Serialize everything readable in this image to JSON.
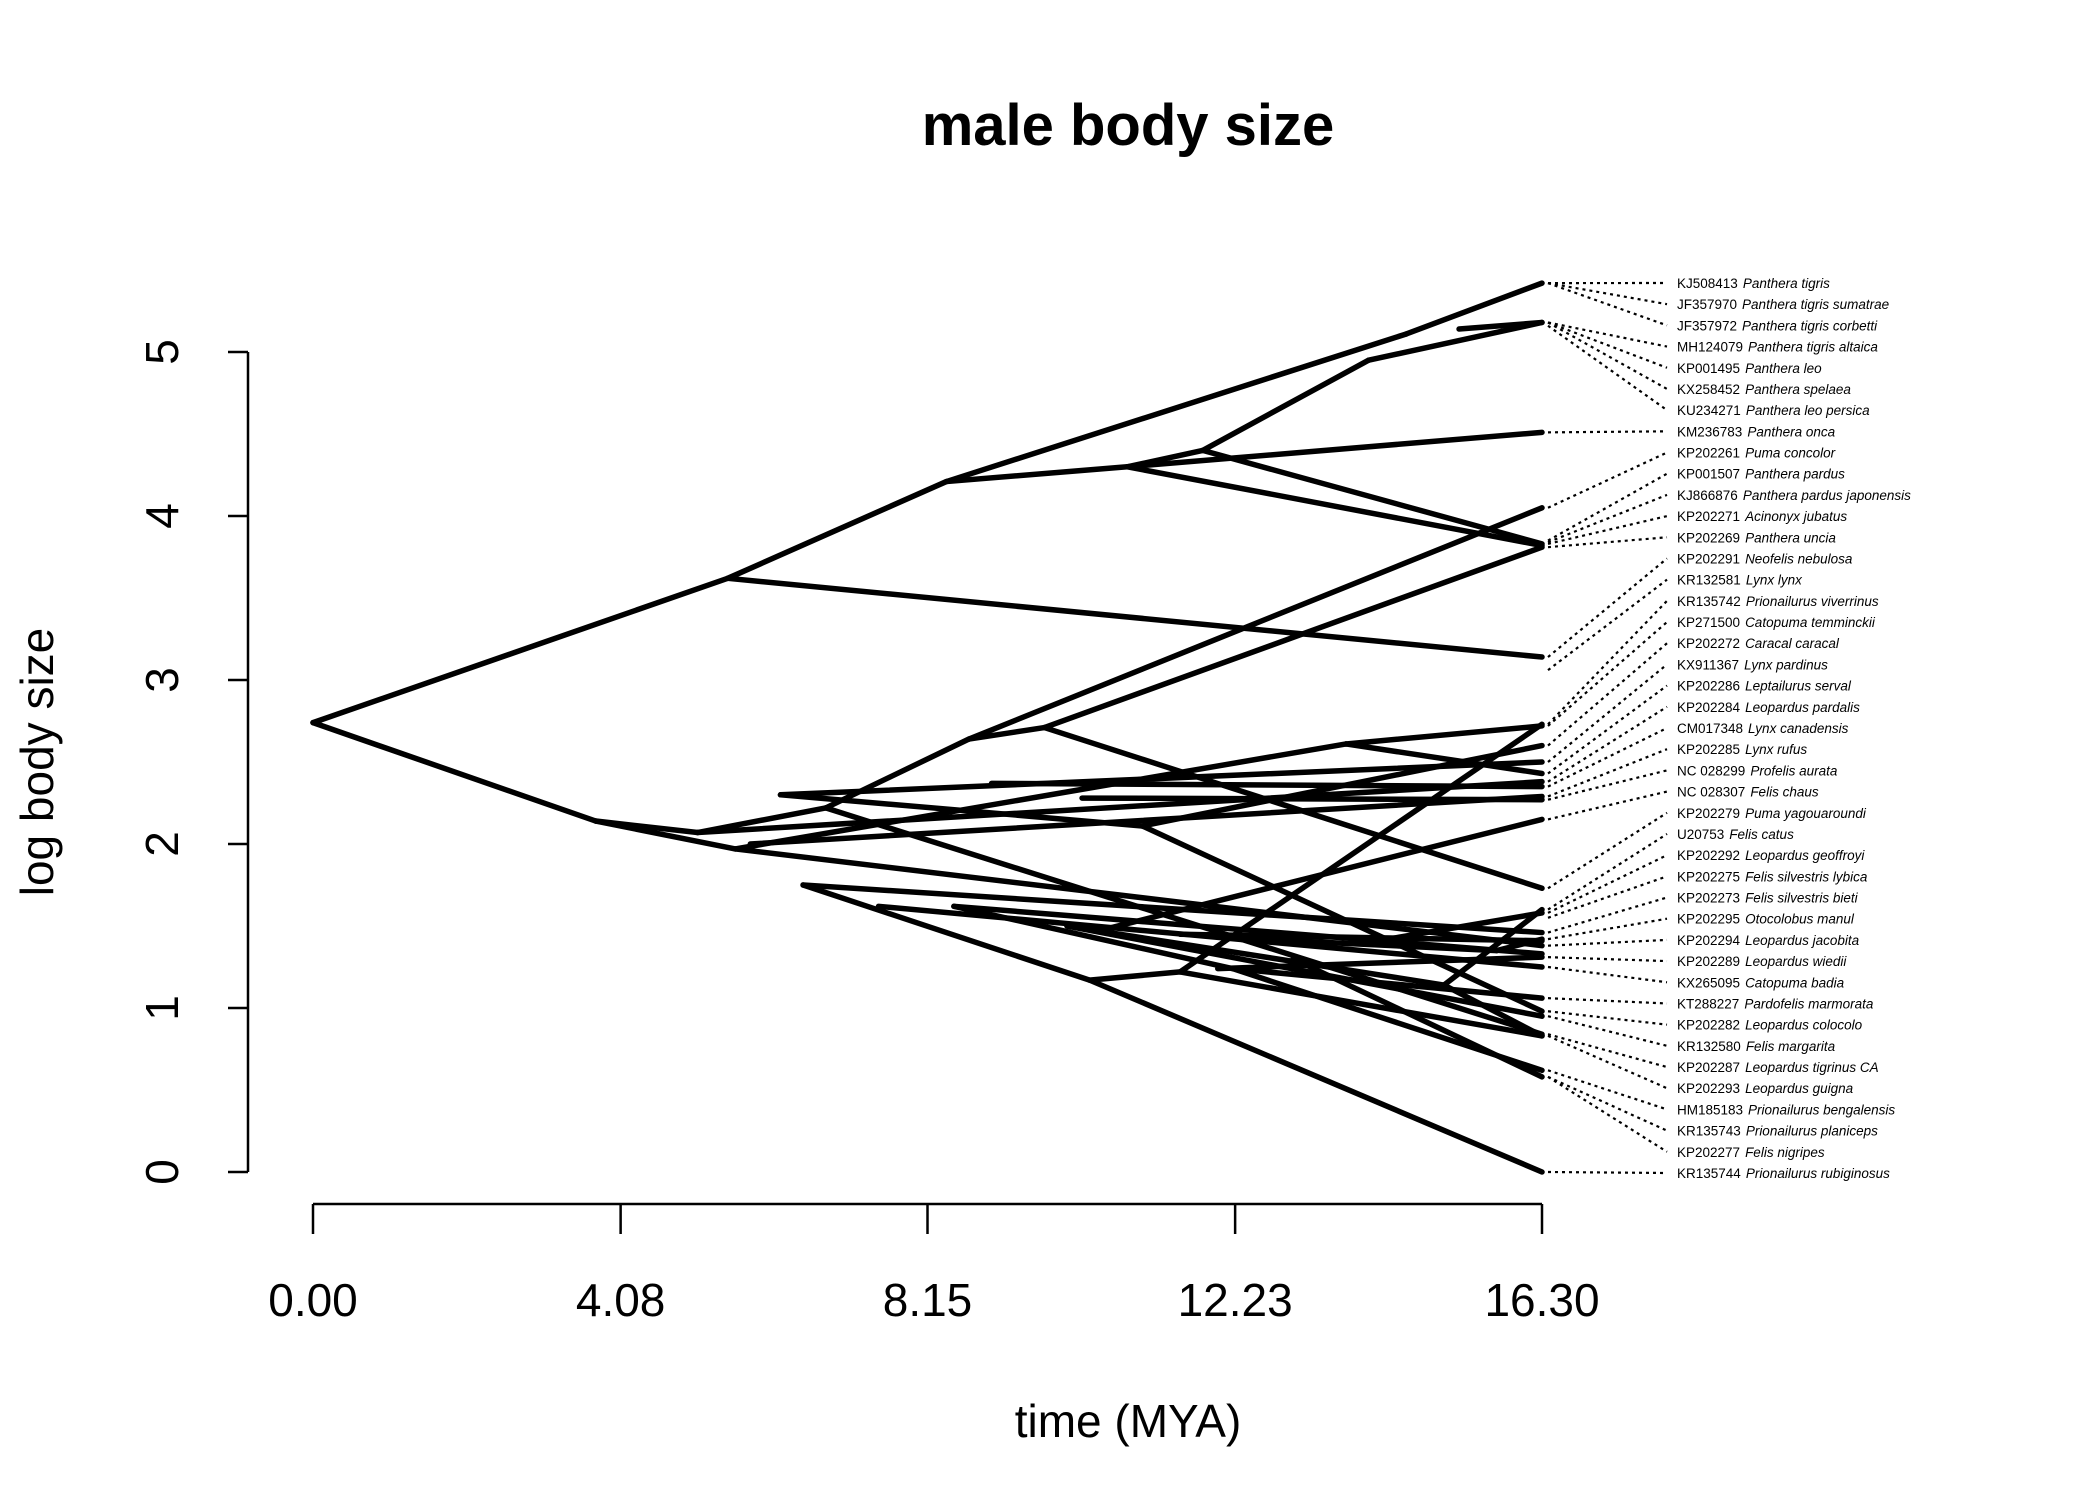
{
  "chart_data": {
    "type": "phenogram",
    "title": "male body size",
    "xlabel": "time (MYA)",
    "ylabel": "log body size",
    "x_ticks": [
      "0.00",
      "4.08",
      "8.15",
      "12.23",
      "16.30"
    ],
    "y_ticks": [
      "0",
      "1",
      "2",
      "3",
      "4",
      "5"
    ],
    "xlim": [
      0,
      16.3
    ],
    "ylim": [
      0,
      5
    ],
    "branches": [
      {
        "x": [
          0.0,
          5.5
        ],
        "y": [
          2.74,
          3.62
        ]
      },
      {
        "x": [
          0.0,
          3.75
        ],
        "y": [
          2.74,
          2.14
        ]
      },
      {
        "x": [
          5.5,
          8.4
        ],
        "y": [
          3.62,
          4.21
        ]
      },
      {
        "x": [
          5.5,
          16.3
        ],
        "y": [
          3.62,
          3.14
        ]
      },
      {
        "x": [
          8.4,
          14.5
        ],
        "y": [
          4.21,
          5.11
        ]
      },
      {
        "x": [
          14.5,
          16.3
        ],
        "y": [
          5.11,
          5.42
        ]
      },
      {
        "x": [
          8.4,
          10.8
        ],
        "y": [
          4.21,
          4.3
        ]
      },
      {
        "x": [
          10.8,
          11.8
        ],
        "y": [
          4.3,
          4.4
        ]
      },
      {
        "x": [
          11.8,
          14.0
        ],
        "y": [
          4.4,
          4.95
        ]
      },
      {
        "x": [
          14.0,
          16.3
        ],
        "y": [
          4.95,
          5.18
        ]
      },
      {
        "x": [
          15.2,
          16.3
        ],
        "y": [
          5.14,
          5.18
        ]
      },
      {
        "x": [
          11.8,
          16.3
        ],
        "y": [
          4.4,
          3.83
        ]
      },
      {
        "x": [
          10.8,
          16.3
        ],
        "y": [
          4.3,
          3.82
        ]
      },
      {
        "x": [
          10.8,
          16.3
        ],
        "y": [
          4.3,
          4.51
        ]
      },
      {
        "x": [
          3.75,
          5.1
        ],
        "y": [
          2.14,
          2.07
        ]
      },
      {
        "x": [
          3.75,
          5.6
        ],
        "y": [
          2.14,
          1.97
        ]
      },
      {
        "x": [
          5.1,
          6.8
        ],
        "y": [
          2.07,
          2.22
        ]
      },
      {
        "x": [
          5.1,
          16.3
        ],
        "y": [
          2.07,
          2.38
        ]
      },
      {
        "x": [
          6.8,
          8.7
        ],
        "y": [
          2.22,
          2.64
        ]
      },
      {
        "x": [
          8.7,
          16.3
        ],
        "y": [
          2.64,
          4.05
        ]
      },
      {
        "x": [
          8.7,
          9.7
        ],
        "y": [
          2.64,
          2.71
        ]
      },
      {
        "x": [
          9.7,
          16.3
        ],
        "y": [
          2.71,
          3.81
        ]
      },
      {
        "x": [
          9.7,
          16.3
        ],
        "y": [
          2.71,
          1.73
        ]
      },
      {
        "x": [
          6.8,
          16.3
        ],
        "y": [
          2.22,
          0.84
        ]
      },
      {
        "x": [
          5.6,
          13.7
        ],
        "y": [
          1.97,
          2.61
        ]
      },
      {
        "x": [
          13.7,
          16.3
        ],
        "y": [
          2.61,
          2.72
        ]
      },
      {
        "x": [
          13.7,
          16.3
        ],
        "y": [
          2.61,
          2.43
        ]
      },
      {
        "x": [
          5.6,
          16.3
        ],
        "y": [
          1.97,
          1.38
        ]
      },
      {
        "x": [
          6.2,
          16.3
        ],
        "y": [
          2.3,
          2.5
        ]
      },
      {
        "x": [
          6.2,
          11.0
        ],
        "y": [
          2.3,
          2.11
        ]
      },
      {
        "x": [
          11.0,
          16.3
        ],
        "y": [
          2.11,
          0.98
        ]
      },
      {
        "x": [
          11.0,
          16.3
        ],
        "y": [
          2.11,
          2.6
        ]
      },
      {
        "x": [
          5.8,
          16.3
        ],
        "y": [
          2.0,
          2.29
        ]
      },
      {
        "x": [
          9.0,
          16.3
        ],
        "y": [
          2.37,
          2.35
        ]
      },
      {
        "x": [
          10.2,
          16.3
        ],
        "y": [
          2.28,
          2.27
        ]
      },
      {
        "x": [
          6.5,
          16.3
        ],
        "y": [
          1.75,
          1.46
        ]
      },
      {
        "x": [
          6.5,
          10.3
        ],
        "y": [
          1.75,
          1.17
        ]
      },
      {
        "x": [
          10.3,
          16.3
        ],
        "y": [
          1.17,
          0.0
        ]
      },
      {
        "x": [
          10.3,
          11.5
        ],
        "y": [
          1.17,
          1.22
        ]
      },
      {
        "x": [
          11.5,
          16.3
        ],
        "y": [
          1.22,
          2.73
        ]
      },
      {
        "x": [
          11.5,
          16.3
        ],
        "y": [
          1.22,
          0.83
        ]
      },
      {
        "x": [
          8.5,
          12.2
        ],
        "y": [
          1.62,
          1.24
        ]
      },
      {
        "x": [
          12.2,
          16.3
        ],
        "y": [
          1.24,
          0.62
        ]
      },
      {
        "x": [
          12.2,
          16.3
        ],
        "y": [
          1.24,
          1.06
        ]
      },
      {
        "x": [
          8.5,
          16.3
        ],
        "y": [
          1.62,
          1.33
        ]
      },
      {
        "x": [
          7.5,
          16.3
        ],
        "y": [
          1.62,
          1.25
        ]
      },
      {
        "x": [
          10.0,
          15.0
        ],
        "y": [
          1.5,
          1.14
        ]
      },
      {
        "x": [
          15.0,
          16.3
        ],
        "y": [
          1.14,
          1.6
        ]
      },
      {
        "x": [
          15.0,
          16.3
        ],
        "y": [
          1.14,
          0.83
        ]
      },
      {
        "x": [
          10.0,
          16.3
        ],
        "y": [
          1.5,
          0.95
        ]
      },
      {
        "x": [
          11.5,
          16.3
        ],
        "y": [
          1.45,
          1.41
        ]
      },
      {
        "x": [
          12.0,
          16.3
        ],
        "y": [
          1.24,
          1.31
        ]
      },
      {
        "x": [
          12.5,
          15.7
        ],
        "y": [
          1.42,
          1.35
        ]
      },
      {
        "x": [
          15.7,
          16.3
        ],
        "y": [
          1.35,
          1.42
        ]
      },
      {
        "x": [
          10.5,
          16.3
        ],
        "y": [
          1.48,
          2.15
        ]
      },
      {
        "x": [
          14.0,
          16.3
        ],
        "y": [
          1.4,
          1.58
        ]
      },
      {
        "x": [
          13.0,
          16.3
        ],
        "y": [
          1.3,
          0.58
        ]
      }
    ],
    "tips": [
      {
        "acc": "KJ508413",
        "sp": "Panthera tigris",
        "y": 5.42
      },
      {
        "acc": "JF357970",
        "sp": "Panthera tigris sumatrae",
        "y": 5.42
      },
      {
        "acc": "JF357972",
        "sp": "Panthera tigris corbetti",
        "y": 5.42
      },
      {
        "acc": "MH124079",
        "sp": "Panthera tigris altaica",
        "y": 5.18
      },
      {
        "acc": "KP001495",
        "sp": "Panthera leo",
        "y": 5.18
      },
      {
        "acc": "KX258452",
        "sp": "Panthera spelaea",
        "y": 5.18
      },
      {
        "acc": "KU234271",
        "sp": "Panthera leo persica",
        "y": 5.16
      },
      {
        "acc": "KM236783",
        "sp": "Panthera onca",
        "y": 4.51
      },
      {
        "acc": "KP202261",
        "sp": "Puma concolor",
        "y": 4.05
      },
      {
        "acc": "KP001507",
        "sp": "Panthera pardus",
        "y": 3.85
      },
      {
        "acc": "KJ866876",
        "sp": "Panthera pardus japonensis",
        "y": 3.84
      },
      {
        "acc": "KP202271",
        "sp": "Acinonyx jubatus",
        "y": 3.83
      },
      {
        "acc": "KP202269",
        "sp": "Panthera uncia",
        "y": 3.81
      },
      {
        "acc": "KP202291",
        "sp": "Neofelis nebulosa",
        "y": 3.14
      },
      {
        "acc": "KR132581",
        "sp": "Lynx lynx",
        "y": 3.06
      },
      {
        "acc": "KR135742",
        "sp": "Prionailurus viverrinus",
        "y": 2.73
      },
      {
        "acc": "KP271500",
        "sp": "Catopuma temminckii",
        "y": 2.72
      },
      {
        "acc": "KP202272",
        "sp": "Caracal caracal",
        "y": 2.6
      },
      {
        "acc": "KX911367",
        "sp": "Lynx pardinus",
        "y": 2.5
      },
      {
        "acc": "KP202286",
        "sp": "Leptailurus serval",
        "y": 2.43
      },
      {
        "acc": "KP202284",
        "sp": "Leopardus pardalis",
        "y": 2.38
      },
      {
        "acc": "CM017348",
        "sp": "Lynx canadensis",
        "y": 2.35
      },
      {
        "acc": "KP202285",
        "sp": "Lynx rufus",
        "y": 2.29
      },
      {
        "acc": "NC 028299",
        "sp": "Profelis aurata",
        "y": 2.27
      },
      {
        "acc": "NC 028307",
        "sp": "Felis chaus",
        "y": 2.15
      },
      {
        "acc": "KP202279",
        "sp": "Puma yagouaroundi",
        "y": 1.73
      },
      {
        "acc": "U20753",
        "sp": "Felis catus",
        "y": 1.6
      },
      {
        "acc": "KP202292",
        "sp": "Leopardus geoffroyi",
        "y": 1.58
      },
      {
        "acc": "KP202275",
        "sp": "Felis silvestris lybica",
        "y": 1.55
      },
      {
        "acc": "KP202273",
        "sp": "Felis silvestris bieti",
        "y": 1.46
      },
      {
        "acc": "KP202295",
        "sp": "Otocolobus manul",
        "y": 1.42
      },
      {
        "acc": "KP202294",
        "sp": "Leopardus jacobita",
        "y": 1.38
      },
      {
        "acc": "KP202289",
        "sp": "Leopardus wiedii",
        "y": 1.31
      },
      {
        "acc": "KX265095",
        "sp": "Catopuma badia",
        "y": 1.25
      },
      {
        "acc": "KT288227",
        "sp": "Pardofelis marmorata",
        "y": 1.06
      },
      {
        "acc": "KP202282",
        "sp": "Leopardus colocolo",
        "y": 0.98
      },
      {
        "acc": "KR132580",
        "sp": "Felis margarita",
        "y": 0.95
      },
      {
        "acc": "KP202287",
        "sp": "Leopardus tigrinus CA",
        "y": 0.84
      },
      {
        "acc": "KP202293",
        "sp": "Leopardus guigna",
        "y": 0.83
      },
      {
        "acc": "HM185183",
        "sp": "Prionailurus bengalensis",
        "y": 0.62
      },
      {
        "acc": "KR135743",
        "sp": "Prionailurus planiceps",
        "y": 0.58
      },
      {
        "acc": "KP202277",
        "sp": "Felis nigripes",
        "y": 0.58
      },
      {
        "acc": "KR135744",
        "sp": "Prionailurus rubiginosus",
        "y": 0.0
      }
    ]
  }
}
